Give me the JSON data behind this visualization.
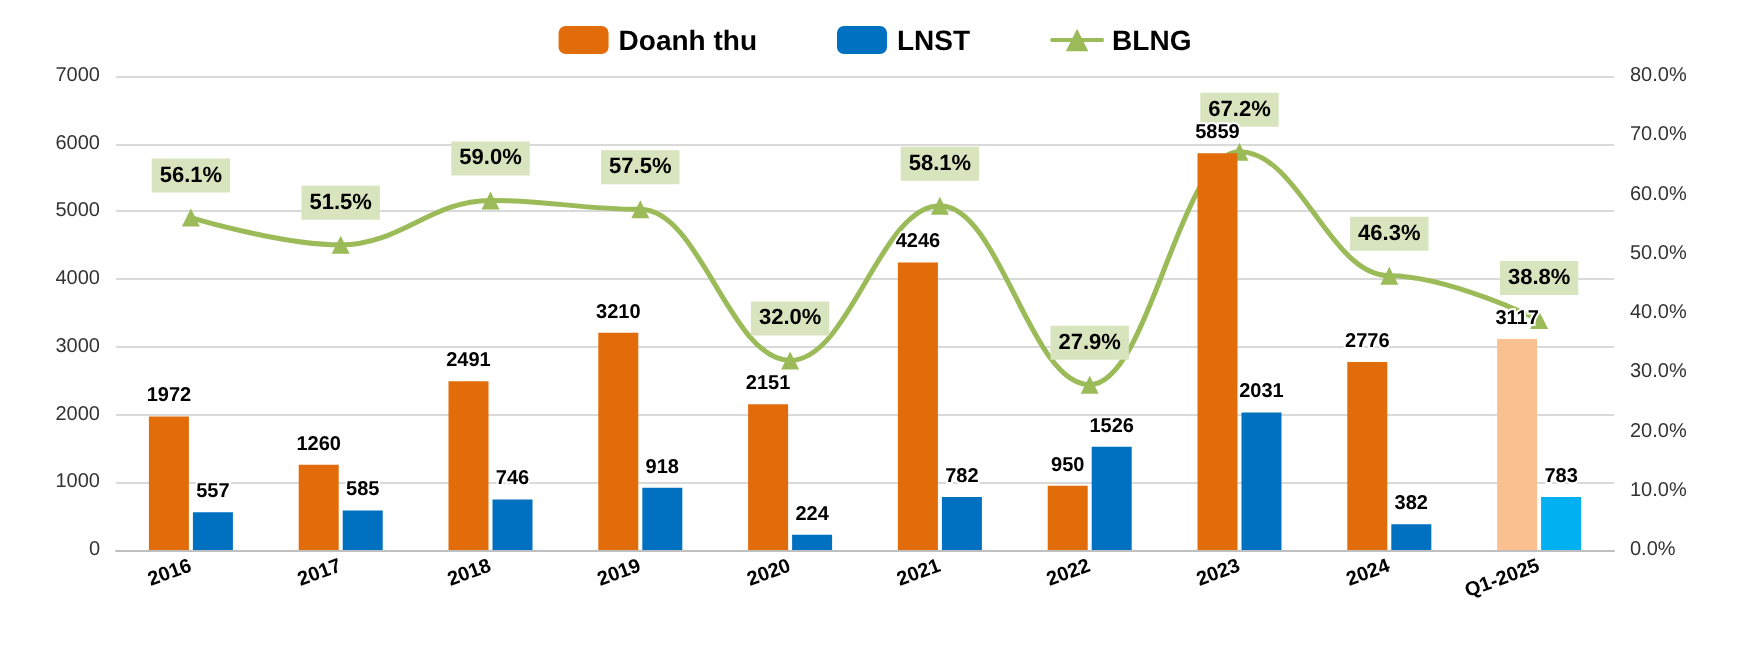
{
  "chart_data": {
    "type": "bar",
    "categories": [
      "2016",
      "2017",
      "2018",
      "2019",
      "2020",
      "2021",
      "2022",
      "2023",
      "2024",
      "Q1-2025"
    ],
    "series": [
      {
        "name": "Doanh thu",
        "color": "#e36c0a",
        "colors": [
          "#e36c0a",
          "#e36c0a",
          "#e36c0a",
          "#e36c0a",
          "#e36c0a",
          "#e36c0a",
          "#e36c0a",
          "#e36c0a",
          "#e36c0a",
          "#fac090"
        ],
        "values": [
          1972,
          1260,
          2491,
          3210,
          2151,
          4246,
          950,
          5859,
          2776,
          3117
        ]
      },
      {
        "name": "LNST",
        "color": "#0070c0",
        "colors": [
          "#0070c0",
          "#0070c0",
          "#0070c0",
          "#0070c0",
          "#0070c0",
          "#0070c0",
          "#0070c0",
          "#0070c0",
          "#0070c0",
          "#00b0f0"
        ],
        "values": [
          557,
          585,
          746,
          918,
          224,
          782,
          1526,
          2031,
          382,
          783
        ]
      },
      {
        "name": "BLNG",
        "type": "line",
        "axis": "y2",
        "color": "#9bbb59",
        "values": [
          56.1,
          51.5,
          59.0,
          57.5,
          32.0,
          58.1,
          27.9,
          67.2,
          46.3,
          38.8
        ],
        "value_labels": [
          "56.1%",
          "51.5%",
          "59.0%",
          "57.5%",
          "32.0%",
          "58.1%",
          "27.9%",
          "67.2%",
          "46.3%",
          "38.8%"
        ]
      }
    ],
    "data_labels": true,
    "ylim": [
      0,
      7000
    ],
    "yticks": [
      0,
      1000,
      2000,
      3000,
      4000,
      5000,
      6000,
      7000
    ],
    "y2lim": [
      0,
      80
    ],
    "y2ticks": [
      {
        "value": 0,
        "label": "0.0%"
      },
      {
        "value": 10,
        "label": "10.0%"
      },
      {
        "value": 20,
        "label": "20.0%"
      },
      {
        "value": 30,
        "label": "30.0%"
      },
      {
        "value": 40,
        "label": "40.0%"
      },
      {
        "value": 50,
        "label": "50.0%"
      },
      {
        "value": 60,
        "label": "60.0%"
      },
      {
        "value": 70,
        "label": "70.0%"
      },
      {
        "value": 80,
        "label": "80.0%"
      }
    ],
    "grid": "y",
    "legend": "top",
    "marker": "triangle",
    "line_style": "solid"
  }
}
